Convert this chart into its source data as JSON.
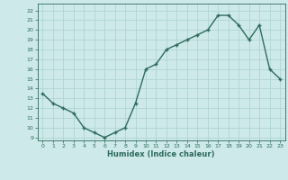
{
  "xlabel": "Humidex (Indice chaleur)",
  "x": [
    0,
    1,
    2,
    3,
    4,
    5,
    6,
    7,
    8,
    9,
    10,
    11,
    12,
    13,
    14,
    15,
    16,
    17,
    18,
    19,
    20,
    21,
    22,
    23
  ],
  "y": [
    13.5,
    12.5,
    12,
    11.5,
    10,
    9.5,
    9,
    9.5,
    10,
    12.5,
    16,
    16.5,
    18,
    18.5,
    19,
    19.5,
    20,
    21.5,
    21.5,
    20.5,
    19,
    20.5,
    16,
    15
  ],
  "line_color": "#2e6b5e",
  "bg_color": "#cde9e9",
  "grid_color": "#b0d4d4",
  "tick_color": "#2e6b5e",
  "ylim": [
    8.7,
    22.7
  ],
  "xlim": [
    -0.5,
    23.5
  ],
  "yticks": [
    9,
    10,
    11,
    12,
    13,
    14,
    15,
    16,
    17,
    18,
    19,
    20,
    21,
    22
  ],
  "xticks": [
    0,
    1,
    2,
    3,
    4,
    5,
    6,
    7,
    8,
    9,
    10,
    11,
    12,
    13,
    14,
    15,
    16,
    17,
    18,
    19,
    20,
    21,
    22,
    23
  ]
}
